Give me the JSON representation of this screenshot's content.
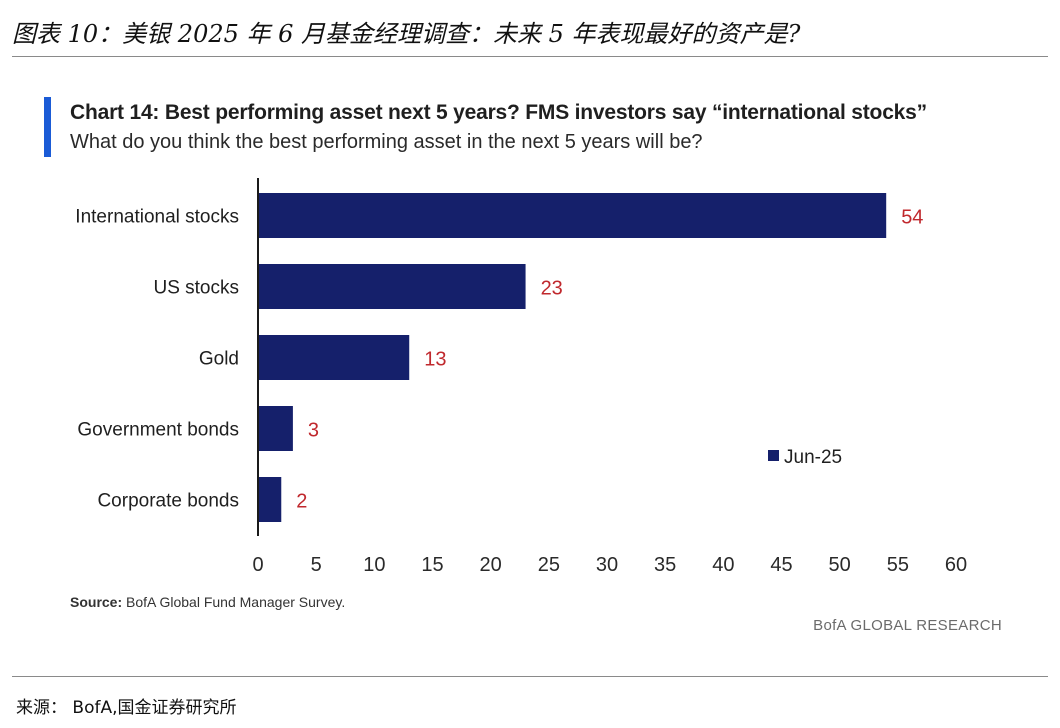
{
  "page_header": "图表 10：美银 2025 年 6 月基金经理调查：未来 5 年表现最好的资产是?",
  "chart_title": "Chart 14: Best performing asset next 5 years? FMS investors say “international stocks”",
  "chart_subtitle": "What do you think the best performing asset in the next 5 years will be?",
  "source_label": "Source:",
  "source_text": "BofA Global Fund Manager Survey.",
  "brand_mark": "BofA GLOBAL RESEARCH",
  "footer_source": "来源：  BofA,国金证券研究所",
  "colors": {
    "bar": "#15206b",
    "value_label": "#c0282d",
    "accent": "#1a5bd6",
    "axis": "#1a1a1a"
  },
  "chart_data": {
    "type": "bar",
    "orientation": "horizontal",
    "categories": [
      "International stocks",
      "US stocks",
      "Gold",
      "Government bonds",
      "Corporate bonds"
    ],
    "series": [
      {
        "name": "Jun-25",
        "values": [
          54,
          23,
          13,
          3,
          2
        ]
      }
    ],
    "xlim": [
      0,
      60
    ],
    "xticks": [
      0,
      5,
      10,
      15,
      20,
      25,
      30,
      35,
      40,
      45,
      50,
      55,
      60
    ],
    "grid": false,
    "legend_position": "right"
  }
}
